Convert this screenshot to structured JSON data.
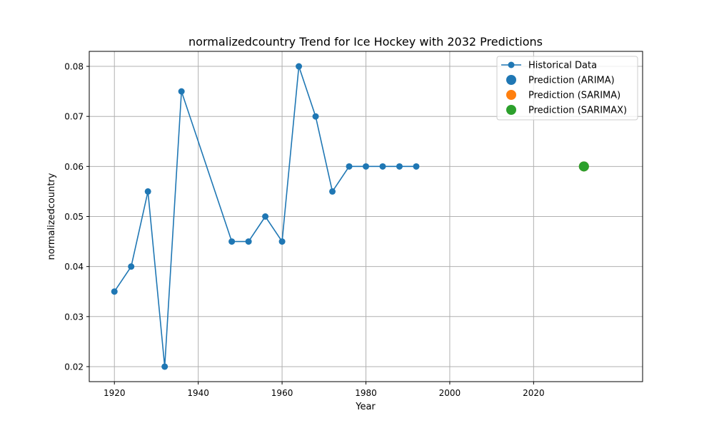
{
  "chart_data": {
    "type": "line",
    "title": "normalizedcountry Trend for Ice Hockey with 2032 Predictions",
    "xlabel": "Year",
    "ylabel": "normalizedcountry",
    "xlim": [
      1914,
      2046
    ],
    "ylim": [
      0.017,
      0.083
    ],
    "xticks": [
      1920,
      1940,
      1960,
      1980,
      2000,
      2020
    ],
    "yticks": [
      0.02,
      0.03,
      0.04,
      0.05,
      0.06,
      0.07,
      0.08
    ],
    "grid": true,
    "legend_position": "top-right",
    "series": [
      {
        "name": "Historical Data",
        "kind": "line",
        "color": "#1f77b4",
        "x": [
          1920,
          1924,
          1928,
          1932,
          1936,
          1948,
          1952,
          1956,
          1960,
          1964,
          1968,
          1972,
          1976,
          1980,
          1984,
          1988,
          1992
        ],
        "y": [
          0.035,
          0.04,
          0.055,
          0.02,
          0.075,
          0.045,
          0.045,
          0.05,
          0.045,
          0.08,
          0.07,
          0.055,
          0.06,
          0.06,
          0.06,
          0.06,
          0.06
        ]
      },
      {
        "name": "Prediction (ARIMA)",
        "kind": "point",
        "color": "#1f77b4",
        "x": [
          2032
        ],
        "y": [
          0.06
        ]
      },
      {
        "name": "Prediction (SARIMA)",
        "kind": "point",
        "color": "#ff7f0e",
        "x": [
          2032
        ],
        "y": [
          0.06
        ]
      },
      {
        "name": "Prediction (SARIMAX)",
        "kind": "point",
        "color": "#2ca02c",
        "x": [
          2032
        ],
        "y": [
          0.06
        ]
      }
    ]
  }
}
